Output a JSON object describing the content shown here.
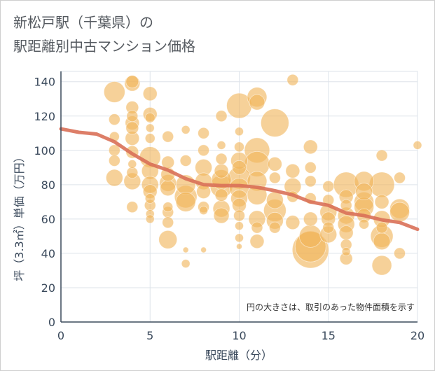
{
  "title": {
    "line1": "新松戸駅（千葉県）の",
    "line2": "駅距離別中古マンション価格"
  },
  "note": "円の大きさは、取引のあった物件面積を示す",
  "colors": {
    "bubble": "#f0b45a",
    "trend": "#d97058",
    "grid": "#dde3ea",
    "axis": "#3b4a5c"
  },
  "chart_data": {
    "type": "scatter",
    "xlabel": "駅距離（分）",
    "ylabel": "坪（3.3㎡）単価（万円）",
    "xlim": [
      0,
      20
    ],
    "ylim": [
      0,
      146
    ],
    "xticks": [
      0,
      5,
      10,
      15,
      20
    ],
    "yticks": [
      0,
      20,
      40,
      60,
      80,
      100,
      120,
      140
    ],
    "grid": true,
    "points": [
      {
        "x": 3,
        "y": 134,
        "s": 15
      },
      {
        "x": 4,
        "y": 140,
        "s": 9
      },
      {
        "x": 4,
        "y": 139,
        "s": 11
      },
      {
        "x": 5,
        "y": 133,
        "s": 10
      },
      {
        "x": 4,
        "y": 125,
        "s": 9
      },
      {
        "x": 5,
        "y": 121,
        "s": 10
      },
      {
        "x": 4,
        "y": 120,
        "s": 8
      },
      {
        "x": 3,
        "y": 118,
        "s": 8
      },
      {
        "x": 5,
        "y": 119,
        "s": 7
      },
      {
        "x": 4,
        "y": 116,
        "s": 10
      },
      {
        "x": 4,
        "y": 113,
        "s": 9
      },
      {
        "x": 5,
        "y": 113,
        "s": 6
      },
      {
        "x": 3,
        "y": 108,
        "s": 7
      },
      {
        "x": 4,
        "y": 107,
        "s": 10
      },
      {
        "x": 5,
        "y": 107,
        "s": 7
      },
      {
        "x": 6,
        "y": 108,
        "s": 8
      },
      {
        "x": 7,
        "y": 112,
        "s": 6
      },
      {
        "x": 8,
        "y": 110,
        "s": 8
      },
      {
        "x": 9,
        "y": 120,
        "s": 8
      },
      {
        "x": 9,
        "y": 103,
        "s": 6
      },
      {
        "x": 3,
        "y": 100,
        "s": 8
      },
      {
        "x": 4,
        "y": 99,
        "s": 9
      },
      {
        "x": 3,
        "y": 94,
        "s": 8
      },
      {
        "x": 4,
        "y": 92,
        "s": 6
      },
      {
        "x": 5,
        "y": 96,
        "s": 15
      },
      {
        "x": 5,
        "y": 88,
        "s": 12
      },
      {
        "x": 6,
        "y": 93,
        "s": 9
      },
      {
        "x": 6,
        "y": 86,
        "s": 10
      },
      {
        "x": 7,
        "y": 94,
        "s": 8
      },
      {
        "x": 8,
        "y": 100,
        "s": 8
      },
      {
        "x": 8,
        "y": 90,
        "s": 12
      },
      {
        "x": 9,
        "y": 95,
        "s": 8
      },
      {
        "x": 9,
        "y": 88,
        "s": 10
      },
      {
        "x": 3,
        "y": 84,
        "s": 12
      },
      {
        "x": 4,
        "y": 82,
        "s": 12
      },
      {
        "x": 4,
        "y": 87,
        "s": 8
      },
      {
        "x": 5,
        "y": 80,
        "s": 12
      },
      {
        "x": 5,
        "y": 76,
        "s": 10
      },
      {
        "x": 6,
        "y": 81,
        "s": 12
      },
      {
        "x": 6,
        "y": 78,
        "s": 11
      },
      {
        "x": 7,
        "y": 80,
        "s": 14
      },
      {
        "x": 7,
        "y": 73,
        "s": 16
      },
      {
        "x": 7,
        "y": 70,
        "s": 14
      },
      {
        "x": 8,
        "y": 82,
        "s": 12
      },
      {
        "x": 8,
        "y": 76,
        "s": 10
      },
      {
        "x": 9,
        "y": 83,
        "s": 14
      },
      {
        "x": 9,
        "y": 79,
        "s": 16
      },
      {
        "x": 9,
        "y": 74,
        "s": 9
      },
      {
        "x": 5,
        "y": 72,
        "s": 7
      },
      {
        "x": 5,
        "y": 68,
        "s": 8
      },
      {
        "x": 4,
        "y": 67,
        "s": 8
      },
      {
        "x": 6,
        "y": 67,
        "s": 7
      },
      {
        "x": 6,
        "y": 64,
        "s": 8
      },
      {
        "x": 5,
        "y": 63,
        "s": 6
      },
      {
        "x": 5,
        "y": 60,
        "s": 6
      },
      {
        "x": 6,
        "y": 58,
        "s": 8
      },
      {
        "x": 8,
        "y": 67,
        "s": 8
      },
      {
        "x": 8,
        "y": 65,
        "s": 6
      },
      {
        "x": 9,
        "y": 66,
        "s": 12
      },
      {
        "x": 9,
        "y": 62,
        "s": 11
      },
      {
        "x": 6,
        "y": 48,
        "s": 13
      },
      {
        "x": 7,
        "y": 42,
        "s": 4
      },
      {
        "x": 7,
        "y": 34,
        "s": 6
      },
      {
        "x": 8,
        "y": 42,
        "s": 4
      },
      {
        "x": 10,
        "y": 126,
        "s": 18
      },
      {
        "x": 10,
        "y": 111,
        "s": 6
      },
      {
        "x": 11,
        "y": 131,
        "s": 14
      },
      {
        "x": 11,
        "y": 128,
        "s": 11
      },
      {
        "x": 12,
        "y": 116,
        "s": 20
      },
      {
        "x": 13,
        "y": 141,
        "s": 8
      },
      {
        "x": 10,
        "y": 102,
        "s": 7
      },
      {
        "x": 11,
        "y": 100,
        "s": 18
      },
      {
        "x": 11,
        "y": 92,
        "s": 18
      },
      {
        "x": 10,
        "y": 94,
        "s": 12
      },
      {
        "x": 10,
        "y": 90,
        "s": 10
      },
      {
        "x": 12,
        "y": 92,
        "s": 10
      },
      {
        "x": 13,
        "y": 88,
        "s": 10
      },
      {
        "x": 14,
        "y": 102,
        "s": 10
      },
      {
        "x": 14,
        "y": 90,
        "s": 8
      },
      {
        "x": 10,
        "y": 84,
        "s": 16
      },
      {
        "x": 10,
        "y": 78,
        "s": 14
      },
      {
        "x": 11,
        "y": 82,
        "s": 14
      },
      {
        "x": 12,
        "y": 84,
        "s": 8
      },
      {
        "x": 13,
        "y": 79,
        "s": 12
      },
      {
        "x": 14,
        "y": 82,
        "s": 8
      },
      {
        "x": 10,
        "y": 72,
        "s": 12
      },
      {
        "x": 10,
        "y": 68,
        "s": 10
      },
      {
        "x": 11,
        "y": 74,
        "s": 14
      },
      {
        "x": 12,
        "y": 71,
        "s": 12
      },
      {
        "x": 12,
        "y": 65,
        "s": 16
      },
      {
        "x": 13,
        "y": 73,
        "s": 8
      },
      {
        "x": 14,
        "y": 72,
        "s": 8
      },
      {
        "x": 10,
        "y": 62,
        "s": 8
      },
      {
        "x": 11,
        "y": 60,
        "s": 12
      },
      {
        "x": 12,
        "y": 59,
        "s": 12
      },
      {
        "x": 13,
        "y": 58,
        "s": 10
      },
      {
        "x": 14,
        "y": 60,
        "s": 10
      },
      {
        "x": 10,
        "y": 56,
        "s": 6
      },
      {
        "x": 11,
        "y": 55,
        "s": 8
      },
      {
        "x": 12,
        "y": 55,
        "s": 8
      },
      {
        "x": 10,
        "y": 49,
        "s": 6
      },
      {
        "x": 11,
        "y": 47,
        "s": 10
      },
      {
        "x": 10,
        "y": 44,
        "s": 4
      },
      {
        "x": 14,
        "y": 50,
        "s": 16
      },
      {
        "x": 14,
        "y": 44,
        "s": 22
      },
      {
        "x": 14,
        "y": 42,
        "s": 26
      },
      {
        "x": 15,
        "y": 79,
        "s": 8
      },
      {
        "x": 15,
        "y": 71,
        "s": 8
      },
      {
        "x": 15,
        "y": 64,
        "s": 12
      },
      {
        "x": 15,
        "y": 60,
        "s": 10
      },
      {
        "x": 15,
        "y": 55,
        "s": 8
      },
      {
        "x": 15,
        "y": 51,
        "s": 12
      },
      {
        "x": 16,
        "y": 80,
        "s": 18
      },
      {
        "x": 16,
        "y": 73,
        "s": 10
      },
      {
        "x": 16,
        "y": 68,
        "s": 8
      },
      {
        "x": 16,
        "y": 62,
        "s": 12
      },
      {
        "x": 16,
        "y": 57,
        "s": 12
      },
      {
        "x": 16,
        "y": 52,
        "s": 10
      },
      {
        "x": 16,
        "y": 45,
        "s": 8
      },
      {
        "x": 16,
        "y": 41,
        "s": 6
      },
      {
        "x": 16,
        "y": 37,
        "s": 9
      },
      {
        "x": 17,
        "y": 82,
        "s": 14
      },
      {
        "x": 17,
        "y": 76,
        "s": 12
      },
      {
        "x": 17,
        "y": 70,
        "s": 14
      },
      {
        "x": 17,
        "y": 67,
        "s": 14
      },
      {
        "x": 17,
        "y": 62,
        "s": 10
      },
      {
        "x": 17,
        "y": 57,
        "s": 7
      },
      {
        "x": 18,
        "y": 97,
        "s": 8
      },
      {
        "x": 18,
        "y": 80,
        "s": 18
      },
      {
        "x": 18,
        "y": 70,
        "s": 10
      },
      {
        "x": 18,
        "y": 60,
        "s": 12
      },
      {
        "x": 18,
        "y": 55,
        "s": 8
      },
      {
        "x": 18,
        "y": 50,
        "s": 16
      },
      {
        "x": 18,
        "y": 47,
        "s": 12
      },
      {
        "x": 18,
        "y": 33,
        "s": 14
      },
      {
        "x": 19,
        "y": 84,
        "s": 8
      },
      {
        "x": 19,
        "y": 66,
        "s": 14
      },
      {
        "x": 19,
        "y": 64,
        "s": 14
      },
      {
        "x": 19,
        "y": 40,
        "s": 8
      },
      {
        "x": 20,
        "y": 103,
        "s": 6
      }
    ],
    "trend": {
      "x": [
        0,
        1,
        2,
        3,
        4,
        5,
        6,
        7,
        8,
        9,
        10,
        11,
        12,
        13,
        14,
        15,
        16,
        17,
        18,
        19,
        20
      ],
      "y": [
        112.5,
        110.5,
        109.5,
        105,
        98,
        92,
        88.5,
        83.5,
        80,
        79.5,
        79.5,
        78.5,
        76.5,
        74,
        70,
        68,
        63.5,
        62,
        59.5,
        58,
        54
      ]
    }
  }
}
